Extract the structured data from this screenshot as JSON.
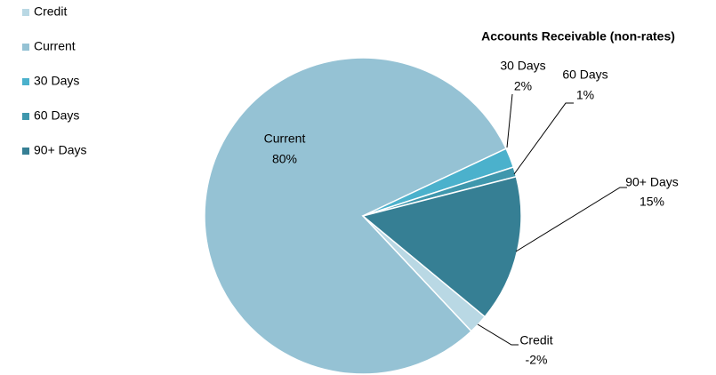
{
  "chart_data": {
    "type": "pie",
    "title": "Accounts Receivable (non-rates)",
    "categories": [
      "Credit",
      "Current",
      "30 Days",
      "60 Days",
      "90+ Days"
    ],
    "values": [
      -2,
      80,
      2,
      1,
      15
    ],
    "value_labels": [
      "-2%",
      "80%",
      "2%",
      "1%",
      "15%"
    ],
    "colors": [
      "#b9d8e4",
      "#95c2d4",
      "#4bb1cc",
      "#3f97ad",
      "#367f94"
    ],
    "legend": "top-left"
  }
}
